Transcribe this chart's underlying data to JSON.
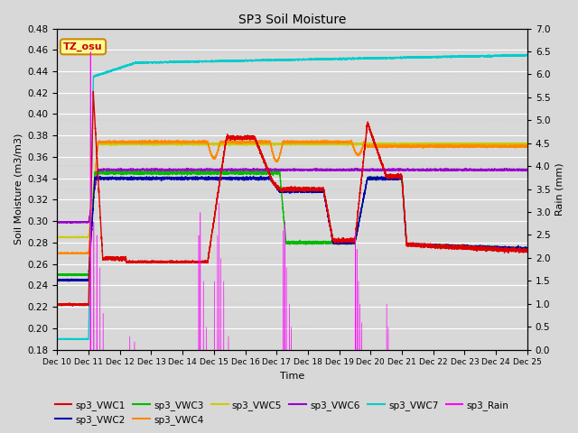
{
  "title": "SP3 Soil Moisture",
  "xlabel": "Time",
  "ylabel_left": "Soil Moisture (m3/m3)",
  "ylabel_right": "Rain (mm)",
  "ylim_left": [
    0.18,
    0.48
  ],
  "ylim_right": [
    0.0,
    7.0
  ],
  "xtick_labels": [
    "Dec 10",
    "Dec 11",
    "Dec 12",
    "Dec 13",
    "Dec 14",
    "Dec 15",
    "Dec 16",
    "Dec 17",
    "Dec 18",
    "Dec 19",
    "Dec 20",
    "Dec 21",
    "Dec 22",
    "Dec 23",
    "Dec 24",
    "Dec 25"
  ],
  "bg_color": "#d8d8d8",
  "plot_bg_color": "#d8d8d8",
  "grid_color": "#ffffff",
  "series_colors": {
    "sp3_VWC1": "#dd0000",
    "sp3_VWC2": "#0000aa",
    "sp3_VWC3": "#00bb00",
    "sp3_VWC4": "#ff8800",
    "sp3_VWC5": "#cccc00",
    "sp3_VWC6": "#9900cc",
    "sp3_VWC7": "#00cccc",
    "sp3_Rain": "#ff00ff"
  },
  "annotation_text": "TZ_osu",
  "annotation_bg": "#ffff99",
  "annotation_border": "#cc8800"
}
